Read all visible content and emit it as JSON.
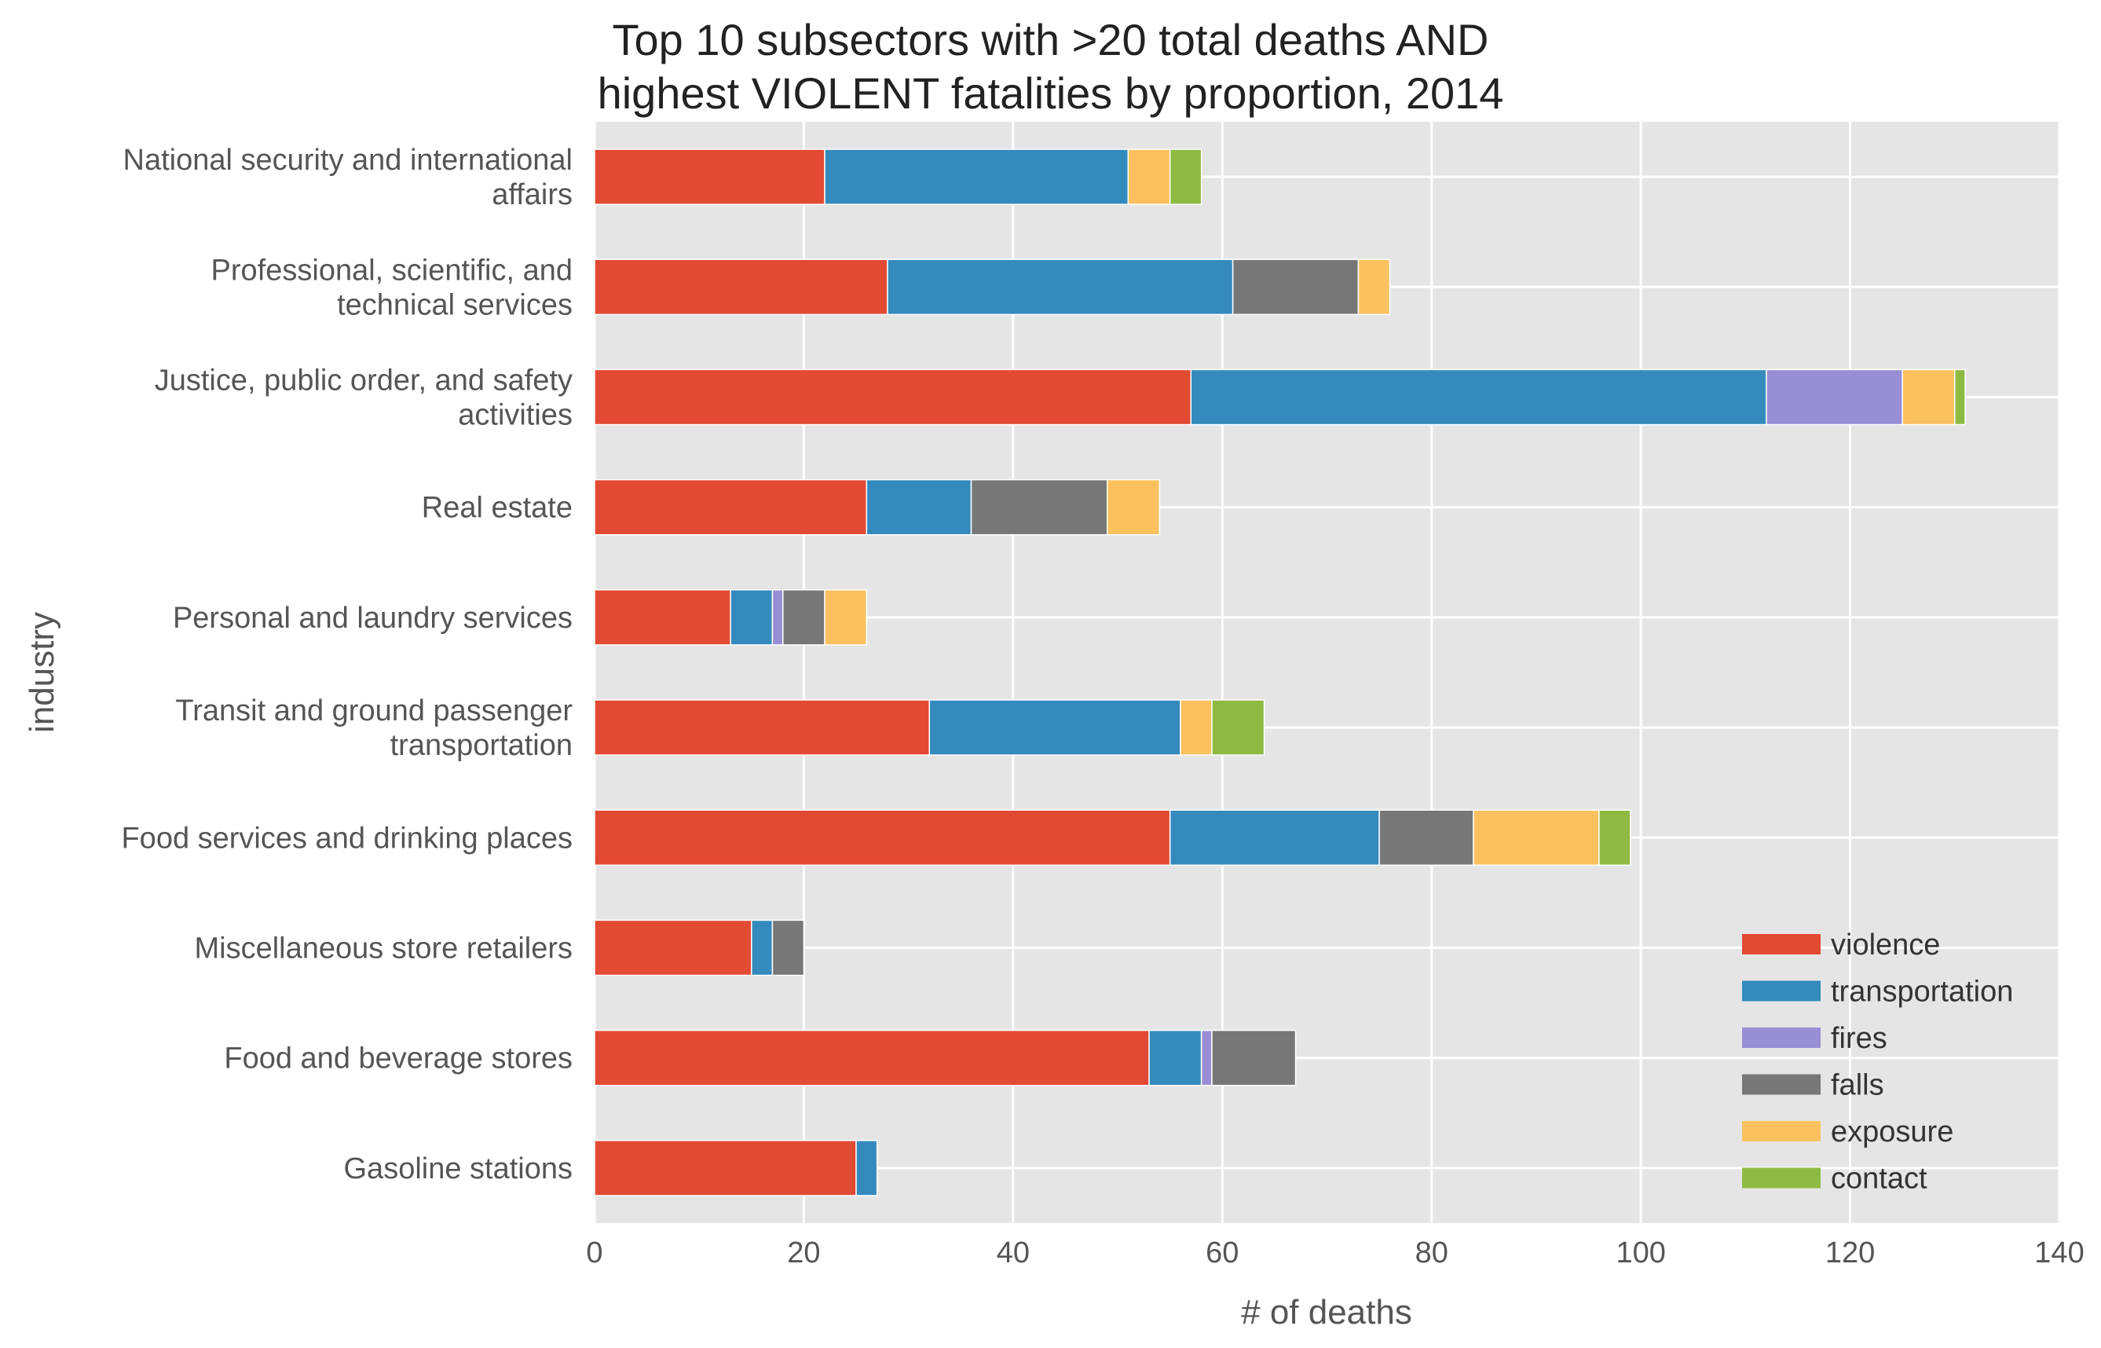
{
  "chart_data": {
    "type": "bar",
    "orientation": "horizontal",
    "stacked": true,
    "title": [
      "Top 10 subsectors with >20 total deaths AND",
      "highest VIOLENT fatalities by proportion, 2014"
    ],
    "xlabel": "# of deaths",
    "ylabel": "industry",
    "xlim": [
      0,
      140
    ],
    "xticks": [
      0,
      20,
      40,
      60,
      80,
      100,
      120,
      140
    ],
    "grid": true,
    "legend_position": "lower-right",
    "categories": [
      [
        "National security and international",
        "affairs"
      ],
      [
        "Professional, scientific, and",
        "technical services"
      ],
      [
        "Justice, public order, and safety",
        "activities"
      ],
      [
        "Real estate"
      ],
      [
        "Personal and laundry services"
      ],
      [
        "Transit and ground passenger",
        "transportation"
      ],
      [
        "Food services and drinking places"
      ],
      [
        "Miscellaneous store retailers"
      ],
      [
        "Food and beverage stores"
      ],
      [
        "Gasoline stations"
      ]
    ],
    "series": [
      {
        "name": "violence",
        "color": "#E24A33",
        "values": [
          22,
          28,
          57,
          26,
          13,
          32,
          55,
          15,
          53,
          25
        ]
      },
      {
        "name": "transportation",
        "color": "#348ABD",
        "values": [
          29,
          33,
          55,
          10,
          4,
          24,
          20,
          2,
          5,
          2
        ]
      },
      {
        "name": "fires",
        "color": "#988ED5",
        "values": [
          0,
          0,
          13,
          0,
          1,
          0,
          0,
          0,
          1,
          0
        ]
      },
      {
        "name": "falls",
        "color": "#777777",
        "values": [
          0,
          12,
          0,
          13,
          4,
          0,
          9,
          3,
          8,
          0
        ]
      },
      {
        "name": "exposure",
        "color": "#FBC15E",
        "values": [
          4,
          3,
          5,
          5,
          4,
          3,
          12,
          0,
          0,
          0
        ]
      },
      {
        "name": "contact",
        "color": "#8EBA42",
        "values": [
          3,
          0,
          1,
          0,
          0,
          5,
          3,
          0,
          0,
          0
        ]
      }
    ]
  }
}
